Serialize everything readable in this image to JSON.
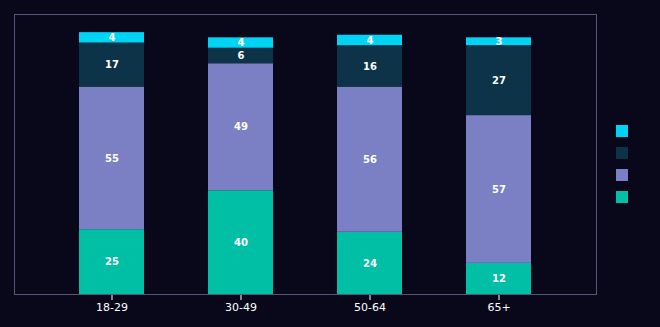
{
  "chart_data": {
    "type": "bar",
    "stacked": true,
    "categories": [
      "18-29",
      "30-49",
      "50-64",
      "65+"
    ],
    "series": [
      {
        "color": "#00BFA5",
        "values": [
          25,
          40,
          24,
          12
        ]
      },
      {
        "color": "#7B7FC4",
        "values": [
          55,
          49,
          56,
          57
        ]
      },
      {
        "color": "#0D3349",
        "values": [
          17,
          6,
          16,
          27
        ]
      },
      {
        "color": "#00D4F5",
        "values": [
          4,
          4,
          4,
          3
        ]
      }
    ],
    "ylim": [
      0,
      108
    ],
    "data_labels": true,
    "tick_labels": "x",
    "grid": false,
    "legend": "right"
  }
}
